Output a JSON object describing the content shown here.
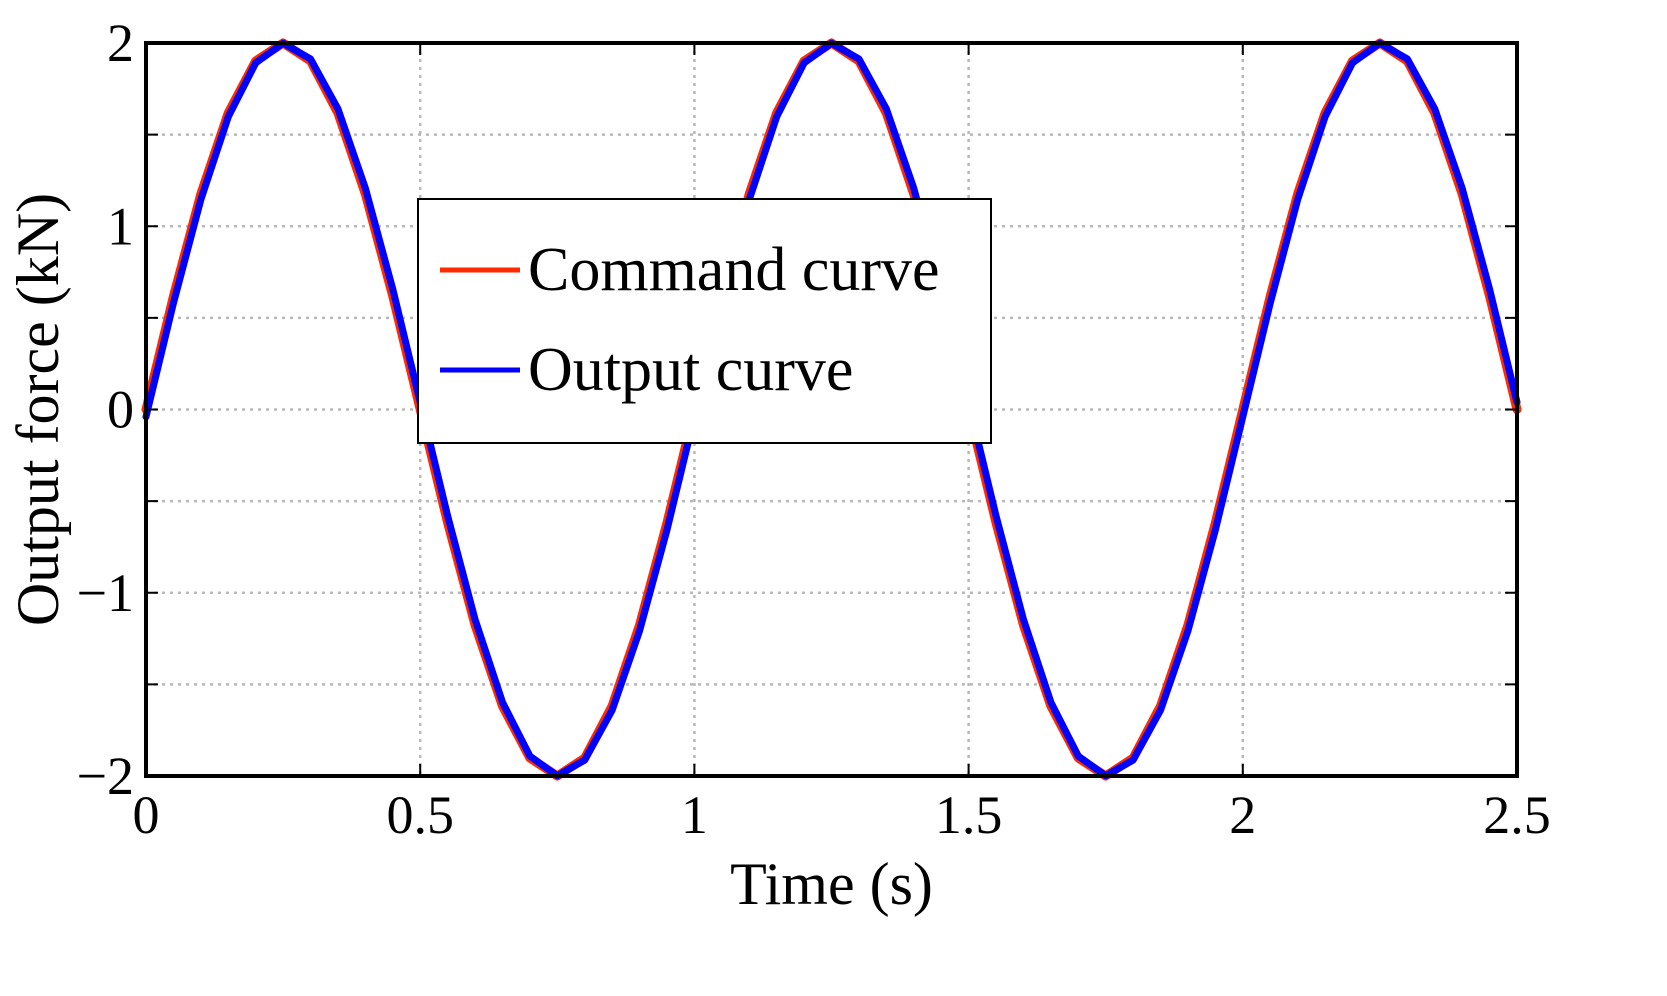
{
  "chart_data": {
    "type": "line",
    "title": "",
    "xlabel": "Time (s)",
    "ylabel": "Output force (kN)",
    "xlim": [
      0,
      2.5
    ],
    "ylim": [
      -2,
      2
    ],
    "xticks": [
      0,
      0.5,
      1,
      1.5,
      2,
      2.5
    ],
    "xtick_labels": [
      "0",
      "0.5",
      "1",
      "1.5",
      "2",
      "2.5"
    ],
    "yticks": [
      -2,
      -1,
      0,
      1,
      2
    ],
    "ytick_labels": [
      "−2",
      "−1",
      "0",
      "1",
      "2"
    ],
    "grid": true,
    "legend_placement": "center-left",
    "series": [
      {
        "name": "Command curve",
        "color": "#ff2a00",
        "x": [
          0,
          0.05,
          0.1,
          0.15,
          0.2,
          0.25,
          0.3,
          0.35,
          0.4,
          0.45,
          0.5,
          0.55,
          0.6,
          0.65,
          0.7,
          0.75,
          0.8,
          0.85,
          0.9,
          0.95,
          1.0,
          1.05,
          1.1,
          1.15,
          1.2,
          1.25,
          1.3,
          1.35,
          1.4,
          1.45,
          1.5,
          1.55,
          1.6,
          1.65,
          1.7,
          1.75,
          1.8,
          1.85,
          1.9,
          1.95,
          2.0,
          2.05,
          2.1,
          2.15,
          2.2,
          2.25,
          2.3,
          2.35,
          2.4,
          2.45,
          2.5
        ],
        "y": [
          0,
          0.618,
          1.176,
          1.618,
          1.902,
          2.0,
          1.902,
          1.618,
          1.176,
          0.618,
          0,
          -0.618,
          -1.176,
          -1.618,
          -1.902,
          -2.0,
          -1.902,
          -1.618,
          -1.176,
          -0.618,
          0,
          0.618,
          1.176,
          1.618,
          1.902,
          2.0,
          1.902,
          1.618,
          1.176,
          0.618,
          0,
          -0.618,
          -1.176,
          -1.618,
          -1.902,
          -2.0,
          -1.902,
          -1.618,
          -1.176,
          -0.618,
          0,
          0.618,
          1.176,
          1.618,
          1.902,
          2.0,
          1.902,
          1.618,
          1.176,
          0.618,
          0
        ]
      },
      {
        "name": "Output curve",
        "color": "#0000ff",
        "x": [
          0,
          0.05,
          0.1,
          0.15,
          0.2,
          0.25,
          0.3,
          0.35,
          0.4,
          0.45,
          0.5,
          0.55,
          0.6,
          0.65,
          0.7,
          0.75,
          0.8,
          0.85,
          0.9,
          0.95,
          1.0,
          1.05,
          1.1,
          1.15,
          1.2,
          1.25,
          1.3,
          1.35,
          1.4,
          1.45,
          1.5,
          1.55,
          1.6,
          1.65,
          1.7,
          1.75,
          1.8,
          1.85,
          1.9,
          1.95,
          2.0,
          2.05,
          2.1,
          2.15,
          2.2,
          2.25,
          2.3,
          2.35,
          2.4,
          2.45,
          2.5
        ],
        "y": [
          -0.04,
          0.58,
          1.145,
          1.597,
          1.891,
          1.999,
          1.913,
          1.641,
          1.208,
          0.657,
          0.04,
          -0.58,
          -1.145,
          -1.597,
          -1.891,
          -1.999,
          -1.913,
          -1.641,
          -1.208,
          -0.657,
          -0.04,
          0.58,
          1.145,
          1.597,
          1.891,
          1.999,
          1.913,
          1.641,
          1.208,
          0.657,
          0.04,
          -0.58,
          -1.145,
          -1.597,
          -1.891,
          -1.999,
          -1.913,
          -1.641,
          -1.208,
          -0.657,
          -0.04,
          0.58,
          1.145,
          1.597,
          1.891,
          1.999,
          1.913,
          1.641,
          1.208,
          0.657,
          0.04
        ]
      }
    ]
  }
}
